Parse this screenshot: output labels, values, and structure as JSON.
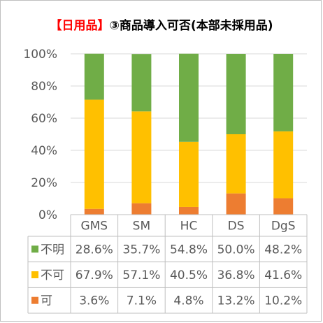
{
  "title": {
    "highlight": "【日用品】",
    "rest": "③商品導入可否(本部未採用品)"
  },
  "colors": {
    "不明": "#70ad47",
    "不可": "#ffc000",
    "可": "#ed7d31",
    "grid": "#d9d9d9",
    "table_border": "#bfbfbf"
  },
  "chart_data": {
    "type": "bar",
    "stacked": true,
    "percent": true,
    "categories": [
      "GMS",
      "SM",
      "HC",
      "DS",
      "DgS"
    ],
    "series": [
      {
        "name": "可",
        "values": [
          3.6,
          7.1,
          4.8,
          13.2,
          10.2
        ],
        "labels": [
          "3.6%",
          "7.1%",
          "4.8%",
          "13.2%",
          "10.2%"
        ]
      },
      {
        "name": "不可",
        "values": [
          67.9,
          57.1,
          40.5,
          36.8,
          41.6
        ],
        "labels": [
          "67.9%",
          "57.1%",
          "40.5%",
          "36.8%",
          "41.6%"
        ]
      },
      {
        "name": "不明",
        "values": [
          28.6,
          35.7,
          54.8,
          50.0,
          48.2
        ],
        "labels": [
          "28.6%",
          "35.7%",
          "54.8%",
          "50.0%",
          "48.2%"
        ]
      }
    ],
    "ylim": [
      0,
      100
    ],
    "yticks": [
      "0%",
      "20%",
      "40%",
      "60%",
      "80%",
      "100%"
    ],
    "table_row_order": [
      "不明",
      "不可",
      "可"
    ],
    "grid": true,
    "legend": "data-table"
  }
}
